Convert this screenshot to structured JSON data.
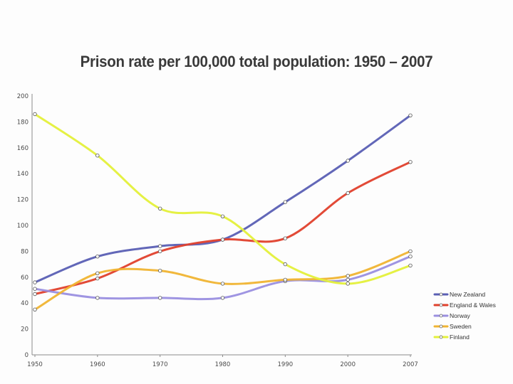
{
  "chart_data": {
    "type": "line",
    "title": "Prison rate per 100,000 total population: 1950 – 2007",
    "xlabel": "",
    "ylabel": "",
    "categories": [
      "1950",
      "1960",
      "1970",
      "1980",
      "1990",
      "2000",
      "2007"
    ],
    "ylim": [
      0,
      200
    ],
    "yticks": [
      0,
      20,
      40,
      60,
      80,
      100,
      120,
      140,
      160,
      180,
      200
    ],
    "grid": false,
    "legend_position": "right",
    "series": [
      {
        "name": "New Zealand",
        "color": "#5a5fb4",
        "values": [
          56,
          76,
          84,
          89,
          118,
          150,
          185
        ]
      },
      {
        "name": "England & Wales",
        "color": "#e0402c",
        "values": [
          47,
          59,
          80,
          89,
          90,
          125,
          149
        ]
      },
      {
        "name": "Norway",
        "color": "#9a8fe0",
        "values": [
          51,
          44,
          44,
          44,
          57,
          58,
          76
        ]
      },
      {
        "name": "Sweden",
        "color": "#f0b432",
        "values": [
          35,
          63,
          65,
          55,
          58,
          61,
          80
        ]
      },
      {
        "name": "Finland",
        "color": "#e4f03a",
        "values": [
          186,
          154,
          113,
          107,
          70,
          55,
          69
        ]
      }
    ]
  }
}
